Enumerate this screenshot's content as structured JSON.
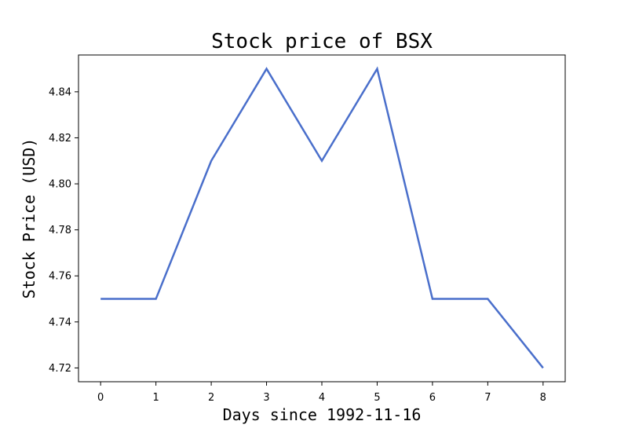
{
  "chart_data": {
    "type": "line",
    "title": "Stock price of BSX",
    "xlabel": "Days since 1992-11-16",
    "ylabel": "Stock Price (USD)",
    "x": [
      0,
      1,
      2,
      3,
      4,
      5,
      6,
      7,
      8
    ],
    "series": [
      {
        "values": [
          4.75,
          4.75,
          4.81,
          4.85,
          4.81,
          4.85,
          4.75,
          4.75,
          4.72
        ],
        "color": "#4a6fcb"
      }
    ],
    "x_ticks": [
      "0",
      "1",
      "2",
      "3",
      "4",
      "5",
      "6",
      "7",
      "8"
    ],
    "y_ticks": [
      "4.72",
      "4.74",
      "4.76",
      "4.78",
      "4.80",
      "4.82",
      "4.84"
    ],
    "xlim": [
      -0.4,
      8.4
    ],
    "ylim": [
      4.714,
      4.856
    ],
    "grid": false,
    "legend": "none"
  }
}
